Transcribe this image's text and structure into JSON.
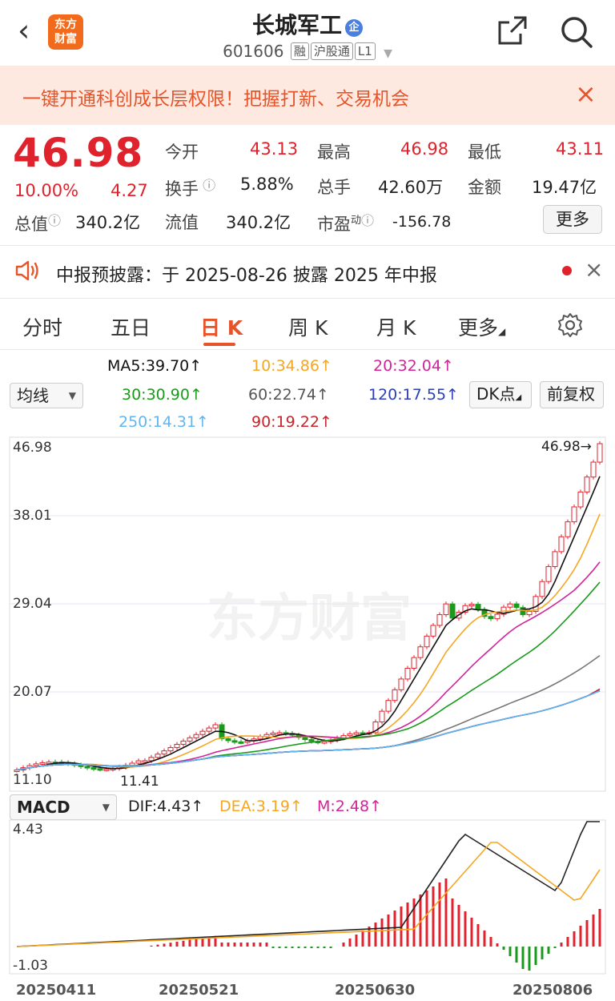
{
  "header": {
    "back_icon": "chevron-left-icon",
    "logo_text_top": "东方",
    "logo_text_bottom": "财富",
    "title": "长城军工",
    "title_badge": "企",
    "code": "601606",
    "tags": [
      "融",
      "沪股通",
      "L1"
    ],
    "share_icon": "share-icon",
    "search_icon": "search-icon"
  },
  "banner": {
    "text": "一键开通科创成长层权限！把握打新、交易机会",
    "close": "×"
  },
  "quote": {
    "price": "46.98",
    "change_pct": "10.00%",
    "change": "4.27",
    "open_label": "今开",
    "open": "43.13",
    "high_label": "最高",
    "high": "46.98",
    "low_label": "最低",
    "low": "43.11",
    "turnover_label": "换手",
    "turnover": "5.88%",
    "volume_label": "总手",
    "volume": "42.60万",
    "amount_label": "金额",
    "amount": "19.47亿",
    "mcap_label": "总值",
    "mcap": "340.2亿",
    "float_label": "流值",
    "float": "340.2亿",
    "pe_label": "市盈",
    "pe_sup": "动",
    "pe": "-156.78",
    "more": "更多"
  },
  "notice": {
    "text": "中报预披露：于 2025-08-26 披露 2025 年中报",
    "close": "×"
  },
  "tabs": [
    {
      "label": "分时"
    },
    {
      "label": "五日"
    },
    {
      "label": "日 K"
    },
    {
      "label": "周 K"
    },
    {
      "label": "月 K"
    },
    {
      "label": "更多"
    }
  ],
  "ma_panel": {
    "select": "均线",
    "ma5": "MA5:39.70↑",
    "ma10": "10:34.86↑",
    "ma20": "20:32.04↑",
    "ma30": "30:30.90↑",
    "ma60": "60:22.74↑",
    "ma120": "120:17.55↑",
    "ma250": "250:14.31↑",
    "ma90": "90:19.22↑",
    "dk_button": "DK点",
    "fq_button": "前复权",
    "colors": {
      "ma5": "#111111",
      "ma10": "#f5a623",
      "ma20": "#d0259a",
      "ma30": "#1a9a1a",
      "ma60": "#777777",
      "ma120": "#2a3fb5",
      "ma250": "#62b6f0",
      "ma90": "#c8242c"
    }
  },
  "kline_chart": {
    "y_labels": [
      "46.98",
      "38.01",
      "29.04",
      "20.07",
      "11.10"
    ],
    "last_label": "46.98→",
    "low_marker": "11.41",
    "watermark": "东方财富"
  },
  "macd": {
    "select": "MACD",
    "dif": "DIF:4.43↑",
    "dea": "DEA:3.19↑",
    "m": "M:2.48↑",
    "y_top": "4.43",
    "y_bottom": "-1.03"
  },
  "dates": [
    "20250411",
    "20250521",
    "20250630",
    "20250806"
  ]
}
